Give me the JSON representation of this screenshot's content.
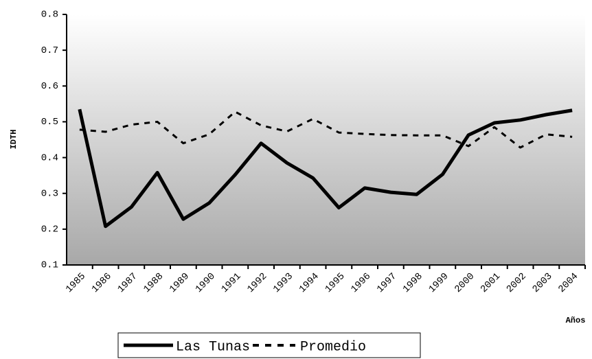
{
  "chart_data": {
    "type": "line",
    "y_label": "IDTH",
    "x_label": "Años",
    "categories": [
      "1985",
      "1986",
      "1987",
      "1988",
      "1989",
      "1990",
      "1991",
      "1992",
      "1993",
      "1994",
      "1995",
      "1996",
      "1997",
      "1998",
      "1999",
      "2000",
      "2001",
      "2002",
      "2003",
      "2004"
    ],
    "series": [
      {
        "name": "Las Tunas",
        "color": "#000000",
        "dash": false,
        "values": [
          0.535,
          0.208,
          0.262,
          0.358,
          0.228,
          0.273,
          0.352,
          0.44,
          0.385,
          0.343,
          0.26,
          0.315,
          0.303,
          0.297,
          0.353,
          0.463,
          0.497,
          0.505,
          0.52,
          0.532
        ]
      },
      {
        "name": "Promedio",
        "color": "#000000",
        "dash": true,
        "values": [
          0.478,
          0.472,
          0.492,
          0.5,
          0.44,
          0.465,
          0.528,
          0.49,
          0.473,
          0.508,
          0.47,
          0.466,
          0.463,
          0.462,
          0.462,
          0.432,
          0.485,
          0.428,
          0.465,
          0.458
        ]
      }
    ],
    "ylim": [
      0.1,
      0.8
    ],
    "yticks": [
      0.1,
      0.2,
      0.3,
      0.4,
      0.5,
      0.6,
      0.7,
      0.8
    ],
    "grid": false,
    "legend": "bottom"
  }
}
